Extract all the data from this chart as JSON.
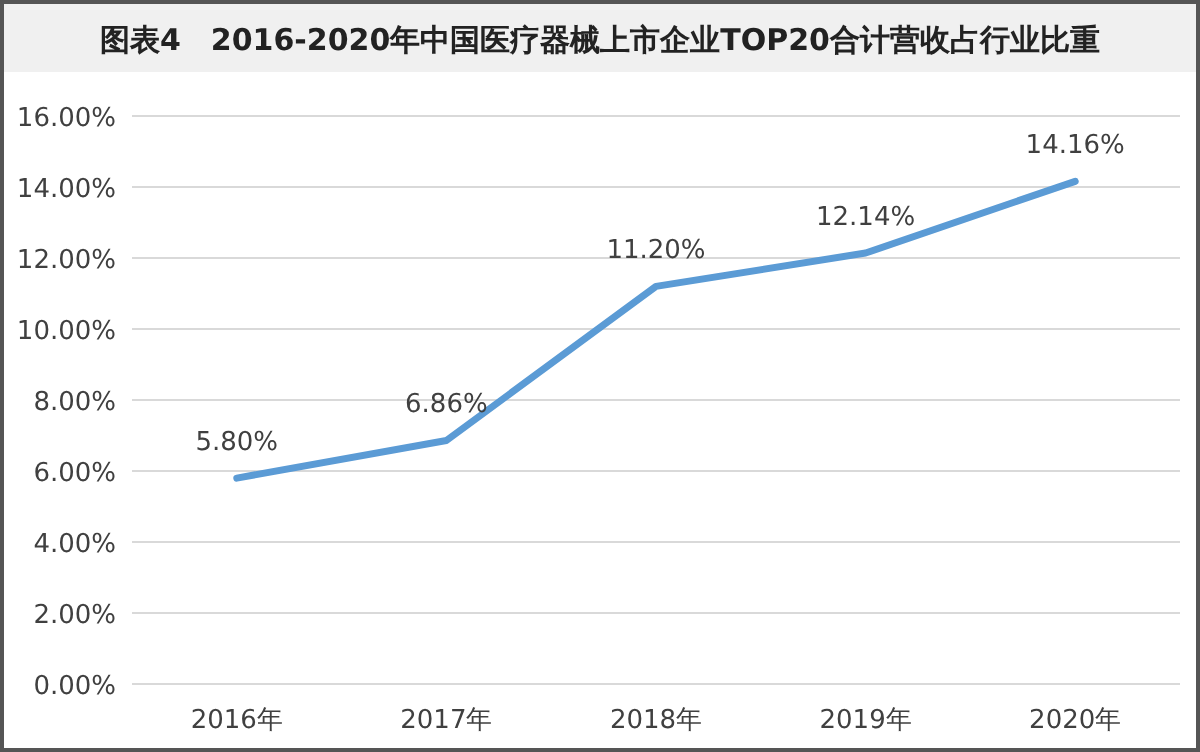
{
  "chart_data": {
    "type": "line",
    "title": "图表4　2016-2020年中国医疗器械上市企业TOP20合计营收占行业比重",
    "categories": [
      "2016年",
      "2017年",
      "2018年",
      "2019年",
      "2020年"
    ],
    "series": [
      {
        "color": "#5b9bd5",
        "values": [
          5.8,
          6.86,
          11.2,
          12.14,
          14.16
        ],
        "value_labels": [
          "5.80%",
          "6.86%",
          "11.20%",
          "12.14%",
          "14.16%"
        ]
      }
    ],
    "ylim": [
      0,
      16
    ],
    "yticks": [
      {
        "value": 0,
        "label": "0.00%"
      },
      {
        "value": 2,
        "label": "2.00%"
      },
      {
        "value": 4,
        "label": "4.00%"
      },
      {
        "value": 6,
        "label": "6.00%"
      },
      {
        "value": 8,
        "label": "8.00%"
      },
      {
        "value": 10,
        "label": "10.00%"
      },
      {
        "value": 12,
        "label": "12.00%"
      },
      {
        "value": 14,
        "label": "14.00%"
      },
      {
        "value": 16,
        "label": "16.00%"
      }
    ],
    "grid": "y",
    "marker": "none",
    "line_style": "solid"
  }
}
